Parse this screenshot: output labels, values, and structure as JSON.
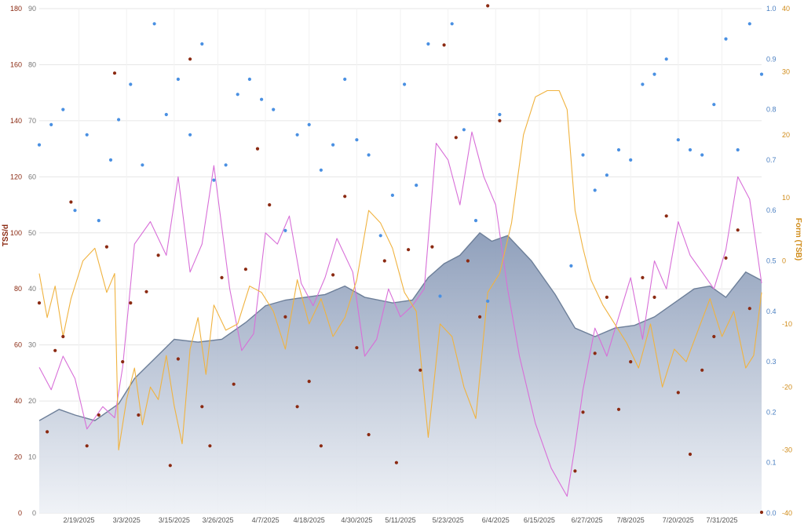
{
  "chart_data": {
    "type": "line",
    "colors": {
      "ctl_fill_top": "#8a9bb8",
      "ctl_fill_bottom": "#eef1f6",
      "ctl_line": "#6d7f99",
      "atl_line": "#d86fd8",
      "tsb_line": "#f0b340",
      "tss_points": "#8b2a12",
      "if_points": "#4a90e2",
      "left_axis": "#8b2a12",
      "right_axis": "#d08c1a",
      "right_outer_axis": "#4a7fc1",
      "grid": "#e6e6e6"
    },
    "axes": {
      "left": {
        "title": "TSS/d",
        "range": [
          0,
          180
        ],
        "ticks": [
          "0",
          "20",
          "40",
          "60",
          "80",
          "100",
          "120",
          "140",
          "160",
          "180"
        ]
      },
      "inner_left": {
        "range": [
          0,
          90
        ],
        "ticks": [
          "0",
          "10",
          "20",
          "30",
          "40",
          "50",
          "60",
          "70",
          "80",
          "90"
        ]
      },
      "right": {
        "title": "Form (TSB)",
        "range": [
          -40,
          40
        ],
        "ticks": [
          "-40",
          "-30",
          "-20",
          "-10",
          "0",
          "10",
          "20",
          "30",
          "40"
        ]
      },
      "right_outer": {
        "range": [
          0,
          1
        ],
        "ticks": [
          "0.0",
          "0.1",
          "0.2",
          "0.3",
          "0.4",
          "0.5",
          "0.6",
          "0.7",
          "0.8",
          "0.9",
          "1.0"
        ]
      },
      "x": {
        "start": "2/9/2025",
        "end": "8/10/2025",
        "ticks": [
          "2/19/2025",
          "3/3/2025",
          "3/15/2025",
          "3/26/2025",
          "4/7/2025",
          "4/18/2025",
          "4/30/2025",
          "5/11/2025",
          "5/23/2025",
          "6/4/2025",
          "6/15/2025",
          "6/27/2025",
          "7/8/2025",
          "7/20/2025",
          "7/31/2025"
        ]
      },
      "grid": true
    },
    "series": [
      {
        "key": "ctl",
        "type": "area",
        "axis": "inner_left",
        "x": [
          "2/9/2025",
          "2/14/2025",
          "2/18/2025",
          "2/23/2025",
          "2/27/2025",
          "3/1/2025",
          "3/5/2025",
          "3/10/2025",
          "3/15/2025",
          "3/21/2025",
          "3/27/2025",
          "4/2/2025",
          "4/7/2025",
          "4/12/2025",
          "4/17/2025",
          "4/22/2025",
          "4/27/2025",
          "5/2/2025",
          "5/9/2025",
          "5/14/2025",
          "5/18/2025",
          "5/22/2025",
          "5/26/2025",
          "5/31/2025",
          "6/3/2025",
          "6/7/2025",
          "6/13/2025",
          "6/19/2025",
          "6/24/2025",
          "6/29/2025",
          "7/4/2025",
          "7/9/2025",
          "7/14/2025",
          "7/19/2025",
          "7/24/2025",
          "7/28/2025",
          "8/1/2025",
          "8/6/2025",
          "8/10/2025"
        ],
        "values": [
          16.5,
          18.5,
          17.5,
          16.5,
          18.5,
          19.5,
          24,
          27.5,
          31,
          30.5,
          31,
          34,
          37,
          38,
          38.5,
          39,
          40.5,
          38.5,
          37.5,
          38,
          42,
          44.5,
          46,
          50,
          48.5,
          49.5,
          45,
          39,
          33,
          31.5,
          33,
          33.5,
          35,
          37.5,
          40,
          40.5,
          38.5,
          43,
          41.5
        ]
      },
      {
        "key": "atl",
        "type": "line",
        "axis": "inner_left",
        "x": [
          "2/9/2025",
          "2/12/2025",
          "2/15/2025",
          "2/18/2025",
          "2/21/2025",
          "2/25/2025",
          "2/28/2025",
          "3/2/2025",
          "3/5/2025",
          "3/9/2025",
          "3/13/2025",
          "3/16/2025",
          "3/19/2025",
          "3/22/2025",
          "3/25/2025",
          "3/29/2025",
          "4/1/2025",
          "4/4/2025",
          "4/7/2025",
          "4/10/2025",
          "4/13/2025",
          "4/16/2025",
          "4/19/2025",
          "4/22/2025",
          "4/25/2025",
          "4/29/2025",
          "5/2/2025",
          "5/5/2025",
          "5/8/2025",
          "5/11/2025",
          "5/14/2025",
          "5/17/2025",
          "5/20/2025",
          "5/23/2025",
          "5/26/2025",
          "5/29/2025",
          "6/1/2025",
          "6/4/2025",
          "6/7/2025",
          "6/10/2025",
          "6/14/2025",
          "6/18/2025",
          "6/22/2025",
          "6/24/2025",
          "6/26/2025",
          "6/29/2025",
          "7/2/2025",
          "7/5/2025",
          "7/8/2025",
          "7/11/2025",
          "7/14/2025",
          "7/17/2025",
          "7/20/2025",
          "7/23/2025",
          "7/26/2025",
          "7/29/2025",
          "8/1/2025",
          "8/4/2025",
          "8/7/2025",
          "8/10/2025"
        ],
        "values": [
          26,
          22,
          28,
          24,
          15,
          19,
          17,
          26,
          48,
          52,
          46,
          60,
          43,
          48,
          62,
          40,
          29,
          32,
          50,
          48,
          53,
          41,
          37,
          42,
          49,
          43,
          28,
          31,
          40,
          35,
          37,
          40,
          66,
          63,
          55,
          68,
          60,
          55,
          40,
          28,
          16,
          8,
          3,
          12,
          22,
          33,
          28,
          35,
          42,
          31,
          45,
          40,
          52,
          46,
          43,
          40,
          47,
          60,
          56,
          41
        ]
      },
      {
        "key": "tsb",
        "type": "line",
        "axis": "right",
        "x": [
          "2/9/2025",
          "2/11/2025",
          "2/13/2025",
          "2/15/2025",
          "2/17/2025",
          "2/20/2025",
          "2/23/2025",
          "2/26/2025",
          "2/28/2025",
          "3/1/2025",
          "3/3/2025",
          "3/5/2025",
          "3/7/2025",
          "3/9/2025",
          "3/11/2025",
          "3/13/2025",
          "3/15/2025",
          "3/17/2025",
          "3/19/2025",
          "3/21/2025",
          "3/23/2025",
          "3/25/2025",
          "3/28/2025",
          "3/31/2025",
          "4/3/2025",
          "4/6/2025",
          "4/9/2025",
          "4/12/2025",
          "4/15/2025",
          "4/18/2025",
          "4/21/2025",
          "4/24/2025",
          "4/27/2025",
          "4/30/2025",
          "5/3/2025",
          "5/6/2025",
          "5/9/2025",
          "5/12/2025",
          "5/15/2025",
          "5/18/2025",
          "5/21/2025",
          "5/24/2025",
          "5/27/2025",
          "5/30/2025",
          "6/2/2025",
          "6/5/2025",
          "6/8/2025",
          "6/11/2025",
          "6/14/2025",
          "6/17/2025",
          "6/20/2025",
          "6/22/2025",
          "6/24/2025",
          "6/26/2025",
          "6/28/2025",
          "7/1/2025",
          "7/4/2025",
          "7/7/2025",
          "7/10/2025",
          "7/13/2025",
          "7/16/2025",
          "7/19/2025",
          "7/22/2025",
          "7/25/2025",
          "7/28/2025",
          "7/31/2025",
          "8/3/2025",
          "8/6/2025",
          "8/8/2025",
          "8/10/2025"
        ],
        "values": [
          -2,
          -9,
          -4,
          -12,
          -6,
          0,
          2,
          -5,
          -2,
          -30,
          -22,
          -17,
          -26,
          -20,
          -22,
          -15,
          -23,
          -29,
          -14,
          -9,
          -18,
          -7,
          -11,
          -10,
          -4,
          -5,
          -8,
          -14,
          -3,
          -10,
          -6,
          -12,
          -9,
          -3,
          8,
          6,
          2,
          -5,
          -8,
          -28,
          -10,
          -12,
          -20,
          -25,
          -5,
          -2,
          6,
          20,
          26,
          27,
          27,
          24,
          8,
          2,
          -3,
          -7,
          -10,
          -13,
          -17,
          -10,
          -20,
          -14,
          -16,
          -11,
          -6,
          -12,
          -8,
          -17,
          -15,
          -5
        ]
      },
      {
        "key": "tss",
        "type": "scatter",
        "axis": "left",
        "x": [
          "2/9/2025",
          "2/11/2025",
          "2/13/2025",
          "2/15/2025",
          "2/17/2025",
          "2/21/2025",
          "2/24/2025",
          "2/26/2025",
          "2/28/2025",
          "3/2/2025",
          "3/4/2025",
          "3/6/2025",
          "3/8/2025",
          "3/11/2025",
          "3/14/2025",
          "3/16/2025",
          "3/19/2025",
          "3/22/2025",
          "3/24/2025",
          "3/27/2025",
          "3/30/2025",
          "4/2/2025",
          "4/5/2025",
          "4/8/2025",
          "4/12/2025",
          "4/15/2025",
          "4/18/2025",
          "4/21/2025",
          "4/24/2025",
          "4/27/2025",
          "4/30/2025",
          "5/3/2025",
          "5/7/2025",
          "5/10/2025",
          "5/13/2025",
          "5/16/2025",
          "5/19/2025",
          "5/22/2025",
          "5/25/2025",
          "5/28/2025",
          "5/31/2025",
          "6/2/2025",
          "6/5/2025",
          "6/24/2025",
          "6/26/2025",
          "6/29/2025",
          "7/2/2025",
          "7/5/2025",
          "7/8/2025",
          "7/11/2025",
          "7/14/2025",
          "7/17/2025",
          "7/20/2025",
          "7/23/2025",
          "7/26/2025",
          "7/29/2025",
          "8/1/2025",
          "8/4/2025",
          "8/7/2025",
          "8/10/2025"
        ],
        "values": [
          75,
          29,
          58,
          63,
          111,
          24,
          35,
          95,
          157,
          54,
          75,
          35,
          79,
          92,
          17,
          55,
          162,
          38,
          24,
          84,
          46,
          87,
          130,
          110,
          70,
          38,
          47,
          24,
          85,
          113,
          59,
          28,
          90,
          18,
          94,
          51,
          95,
          167,
          134,
          90,
          70,
          181,
          140,
          15,
          36,
          57,
          77,
          37,
          54,
          84,
          77,
          106,
          43,
          21,
          51,
          63,
          91,
          101,
          73,
          0
        ]
      },
      {
        "key": "if",
        "type": "scatter",
        "axis": "right_outer",
        "x": [
          "2/9/2025",
          "2/12/2025",
          "2/15/2025",
          "2/18/2025",
          "2/21/2025",
          "2/24/2025",
          "2/27/2025",
          "3/1/2025",
          "3/4/2025",
          "3/7/2025",
          "3/10/2025",
          "3/13/2025",
          "3/16/2025",
          "3/19/2025",
          "3/22/2025",
          "3/25/2025",
          "3/28/2025",
          "3/31/2025",
          "4/3/2025",
          "4/6/2025",
          "4/9/2025",
          "4/12/2025",
          "4/15/2025",
          "4/18/2025",
          "4/21/2025",
          "4/24/2025",
          "4/27/2025",
          "4/30/2025",
          "5/3/2025",
          "5/6/2025",
          "5/9/2025",
          "5/12/2025",
          "5/15/2025",
          "5/18/2025",
          "5/21/2025",
          "5/24/2025",
          "5/27/2025",
          "5/30/2025",
          "6/2/2025",
          "6/5/2025",
          "6/23/2025",
          "6/26/2025",
          "6/29/2025",
          "7/2/2025",
          "7/5/2025",
          "7/8/2025",
          "7/11/2025",
          "7/14/2025",
          "7/17/2025",
          "7/20/2025",
          "7/23/2025",
          "7/26/2025",
          "7/29/2025",
          "8/1/2025",
          "8/4/2025",
          "8/7/2025",
          "8/10/2025"
        ],
        "values": [
          0.73,
          0.77,
          0.8,
          0.6,
          0.75,
          0.58,
          0.7,
          0.78,
          0.85,
          0.69,
          0.97,
          0.79,
          0.86,
          0.75,
          0.93,
          0.66,
          0.69,
          0.83,
          0.86,
          0.82,
          0.8,
          0.56,
          0.75,
          0.77,
          0.68,
          0.73,
          0.86,
          0.74,
          0.71,
          0.55,
          0.63,
          0.85,
          0.65,
          0.93,
          0.43,
          0.97,
          0.76,
          0.58,
          0.42,
          0.79,
          0.49,
          0.71,
          0.64,
          0.67,
          0.72,
          0.7,
          0.85,
          0.87,
          0.9,
          0.74,
          0.72,
          0.71,
          0.81,
          0.94,
          0.72,
          0.97,
          0.87
        ]
      }
    ]
  }
}
